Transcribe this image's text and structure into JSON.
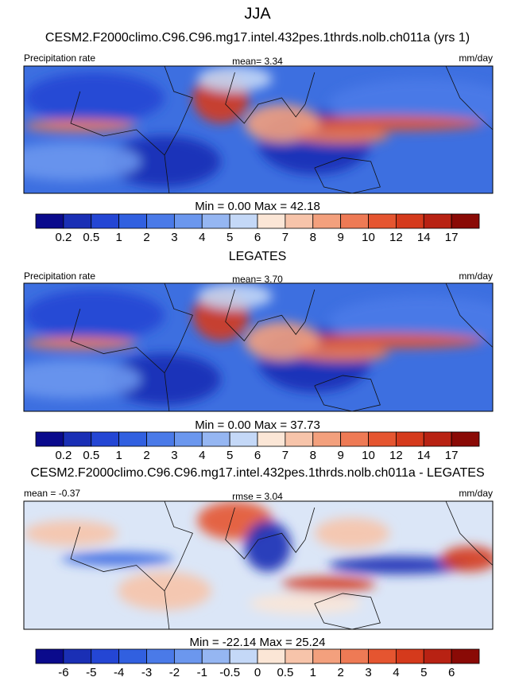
{
  "title": "JJA",
  "panels": [
    {
      "title": "CESM2.F2000climo.C96.C96.mg17.intel.432pes.1thrds.nolb.ch011a (yrs 1)",
      "left": "Precipitation rate",
      "center": "mean=   3.34",
      "right": "mm/day",
      "stats": "Min =   0.00 Max =  42.18",
      "colorbar": {
        "labels": [
          "0.2",
          "0.5",
          "1",
          "2",
          "3",
          "4",
          "5",
          "6",
          "7",
          "8",
          "9",
          "10",
          "12",
          "14",
          "17"
        ],
        "colors": [
          "#0a0a8c",
          "#1a2fb5",
          "#2446d4",
          "#3160e0",
          "#4a7ae8",
          "#6b97ee",
          "#95b6f2",
          "#c4d8f7",
          "#fbe6d6",
          "#f7c4aa",
          "#f3a07d",
          "#ee7a55",
          "#e55530",
          "#d53a1c",
          "#b82213",
          "#8a0a06"
        ]
      }
    },
    {
      "title": "LEGATES",
      "left": "Precipitation rate",
      "center": "mean=   3.70",
      "right": "mm/day",
      "stats": "Min =   0.00 Max =  37.73",
      "colorbar": {
        "labels": [
          "0.2",
          "0.5",
          "1",
          "2",
          "3",
          "4",
          "5",
          "6",
          "7",
          "8",
          "9",
          "10",
          "12",
          "14",
          "17"
        ],
        "colors": [
          "#0a0a8c",
          "#1a2fb5",
          "#2446d4",
          "#3160e0",
          "#4a7ae8",
          "#6b97ee",
          "#95b6f2",
          "#c4d8f7",
          "#fbe6d6",
          "#f7c4aa",
          "#f3a07d",
          "#ee7a55",
          "#e55530",
          "#d53a1c",
          "#b82213",
          "#8a0a06"
        ]
      }
    },
    {
      "title": "CESM2.F2000climo.C96.C96.mg17.intel.432pes.1thrds.nolb.ch011a - LEGATES",
      "left": "mean =  -0.37",
      "center": "rmse =   3.04",
      "right": "mm/day",
      "stats": "Min = -22.14 Max =  25.24",
      "colorbar": {
        "labels": [
          "-6",
          "-5",
          "-4",
          "-3",
          "-2",
          "-1",
          "-0.5",
          "0",
          "0.5",
          "1",
          "2",
          "3",
          "4",
          "5",
          "6"
        ],
        "colors": [
          "#0a0a8c",
          "#1a2fb5",
          "#2446d4",
          "#3160e0",
          "#4a7ae8",
          "#6b97ee",
          "#95b6f2",
          "#c4d8f7",
          "#fbe6d6",
          "#f7c4aa",
          "#f3a07d",
          "#ee7a55",
          "#e55530",
          "#d53a1c",
          "#b82213",
          "#8a0a06"
        ]
      }
    }
  ]
}
